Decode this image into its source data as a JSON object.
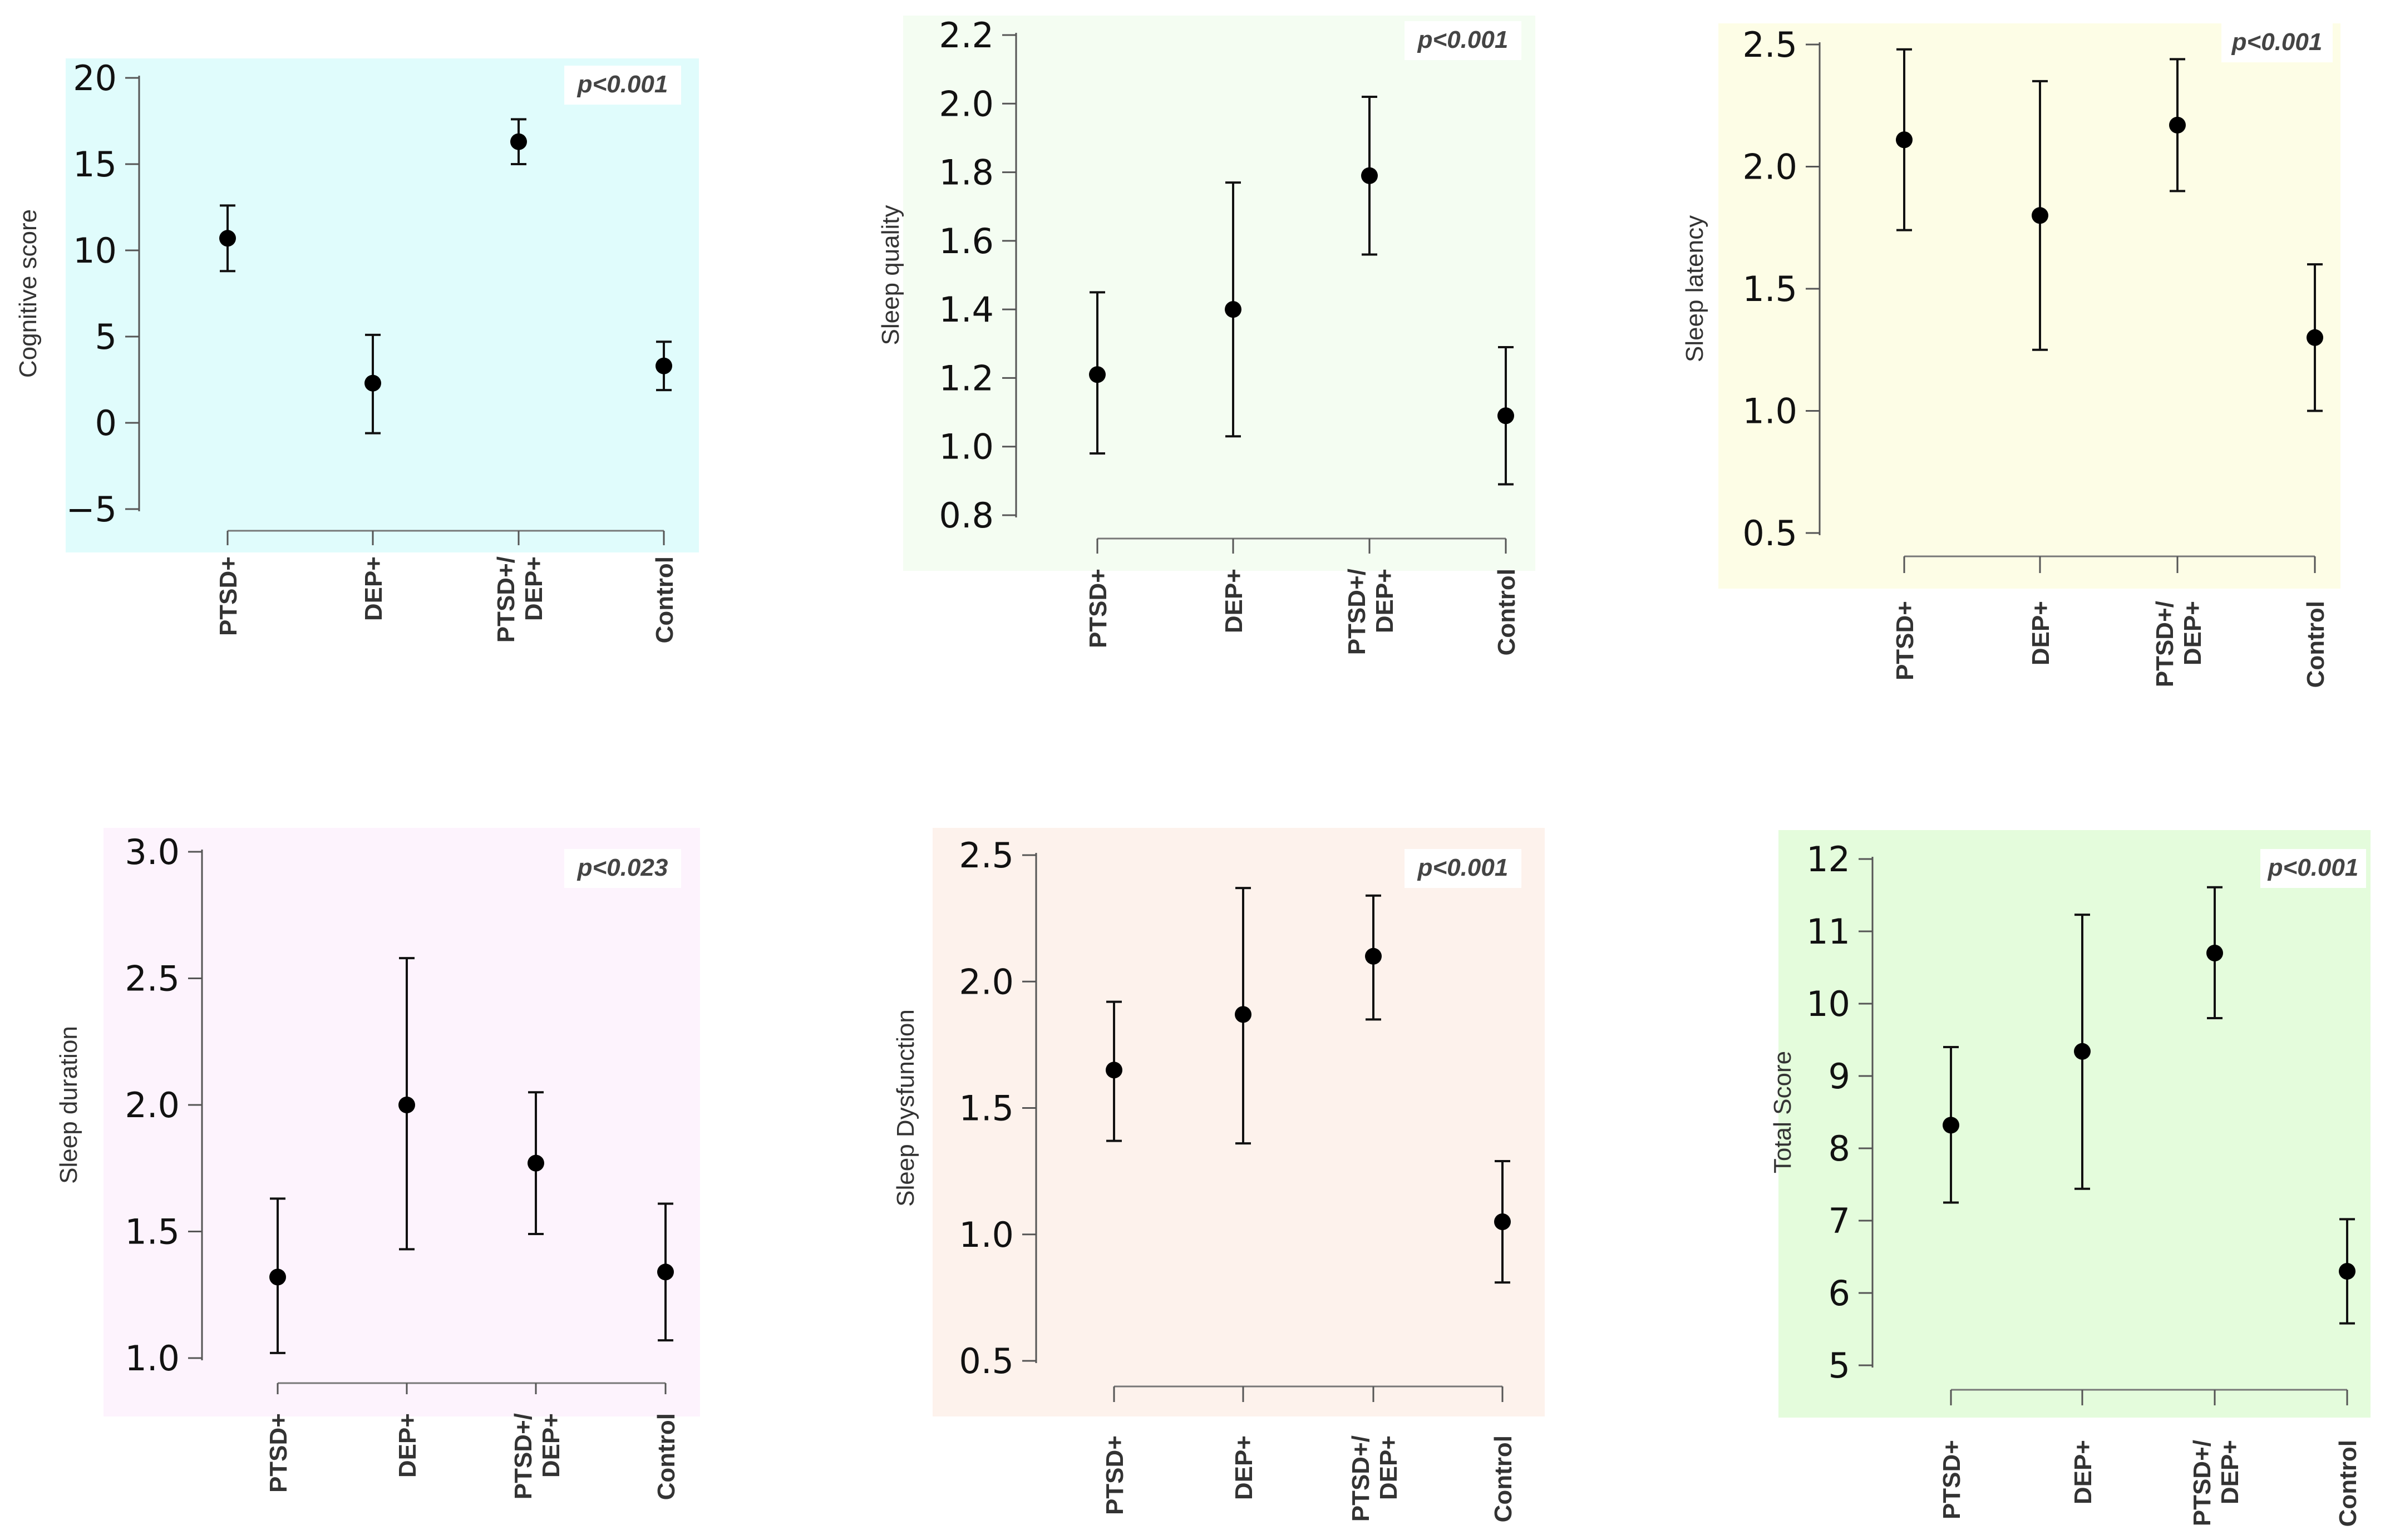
{
  "chart_data": [
    {
      "type": "scatter",
      "ylabel": "Cognitive score",
      "pvalue": "p<0.001",
      "categories": [
        "PTSD+",
        "DEP+",
        "PTSD+/\nDEP+",
        "Control"
      ],
      "yticks": [
        -5,
        0,
        5,
        10,
        15,
        20
      ],
      "ylim": [
        -5,
        20
      ],
      "points": [
        {
          "mean": 10.7,
          "low": 8.8,
          "high": 12.6
        },
        {
          "mean": 2.3,
          "low": -0.6,
          "high": 5.1
        },
        {
          "mean": 16.3,
          "low": 15.0,
          "high": 17.6
        },
        {
          "mean": 3.3,
          "low": 1.9,
          "high": 4.7
        }
      ],
      "background": "#e0fcfc"
    },
    {
      "type": "scatter",
      "ylabel": "Sleep quality",
      "pvalue": "p<0.001",
      "categories": [
        "PTSD+",
        "DEP+",
        "PTSD+/\nDEP+",
        "Control"
      ],
      "yticks": [
        0.8,
        1.0,
        1.2,
        1.4,
        1.6,
        1.8,
        2.0,
        2.2
      ],
      "ylim": [
        0.8,
        2.2
      ],
      "points": [
        {
          "mean": 1.21,
          "low": 0.98,
          "high": 1.45
        },
        {
          "mean": 1.4,
          "low": 1.03,
          "high": 1.77
        },
        {
          "mean": 1.79,
          "low": 1.56,
          "high": 2.02
        },
        {
          "mean": 1.09,
          "low": 0.89,
          "high": 1.29
        }
      ],
      "background": "#f4fdf2"
    },
    {
      "type": "scatter",
      "ylabel": "Sleep latency",
      "pvalue": "p<0.001",
      "categories": [
        "PTSD+",
        "DEP+",
        "PTSD+/\nDEP+",
        "Control"
      ],
      "yticks": [
        0.5,
        1.0,
        1.5,
        2.0,
        2.5
      ],
      "ylim": [
        0.5,
        2.5
      ],
      "points": [
        {
          "mean": 2.11,
          "low": 1.74,
          "high": 2.48
        },
        {
          "mean": 1.8,
          "low": 1.25,
          "high": 2.35
        },
        {
          "mean": 2.17,
          "low": 1.9,
          "high": 2.44
        },
        {
          "mean": 1.3,
          "low": 1.0,
          "high": 1.6
        }
      ],
      "background": "#fdfde6"
    },
    {
      "type": "scatter",
      "ylabel": "Sleep duration",
      "pvalue": "p<0.023",
      "categories": [
        "PTSD+",
        "DEP+",
        "PTSD+/\nDEP+",
        "Control"
      ],
      "yticks": [
        1.0,
        1.5,
        2.0,
        2.5,
        3.0
      ],
      "ylim": [
        1.0,
        3.0
      ],
      "points": [
        {
          "mean": 1.32,
          "low": 1.02,
          "high": 1.63
        },
        {
          "mean": 2.0,
          "low": 1.43,
          "high": 2.58
        },
        {
          "mean": 1.77,
          "low": 1.49,
          "high": 2.05
        },
        {
          "mean": 1.34,
          "low": 1.07,
          "high": 1.61
        }
      ],
      "background": "#fdf3fd"
    },
    {
      "type": "scatter",
      "ylabel": "Sleep Dysfunction",
      "pvalue": "p<0.001",
      "categories": [
        "PTSD+",
        "DEP+",
        "PTSD+/\nDEP+",
        "Control"
      ],
      "yticks": [
        0.5,
        1.0,
        1.5,
        2.0,
        2.5
      ],
      "ylim": [
        0.5,
        2.5
      ],
      "points": [
        {
          "mean": 1.65,
          "low": 1.37,
          "high": 1.92
        },
        {
          "mean": 1.87,
          "low": 1.36,
          "high": 2.37
        },
        {
          "mean": 2.1,
          "low": 1.85,
          "high": 2.34
        },
        {
          "mean": 1.05,
          "low": 0.81,
          "high": 1.29
        }
      ],
      "background": "#fdf2ec"
    },
    {
      "type": "scatter",
      "ylabel": "Total Score",
      "pvalue": "p<0.001",
      "categories": [
        "PTSD+",
        "DEP+",
        "PTSD+/\nDEP+",
        "Control"
      ],
      "yticks": [
        5,
        6,
        7,
        8,
        9,
        10,
        11,
        12
      ],
      "ylim": [
        5,
        12
      ],
      "points": [
        {
          "mean": 8.32,
          "low": 7.25,
          "high": 9.4
        },
        {
          "mean": 9.34,
          "low": 7.44,
          "high": 11.23
        },
        {
          "mean": 10.7,
          "low": 9.8,
          "high": 11.61
        },
        {
          "mean": 6.3,
          "low": 5.58,
          "high": 7.02
        }
      ],
      "background": "#e4fcdc"
    }
  ]
}
